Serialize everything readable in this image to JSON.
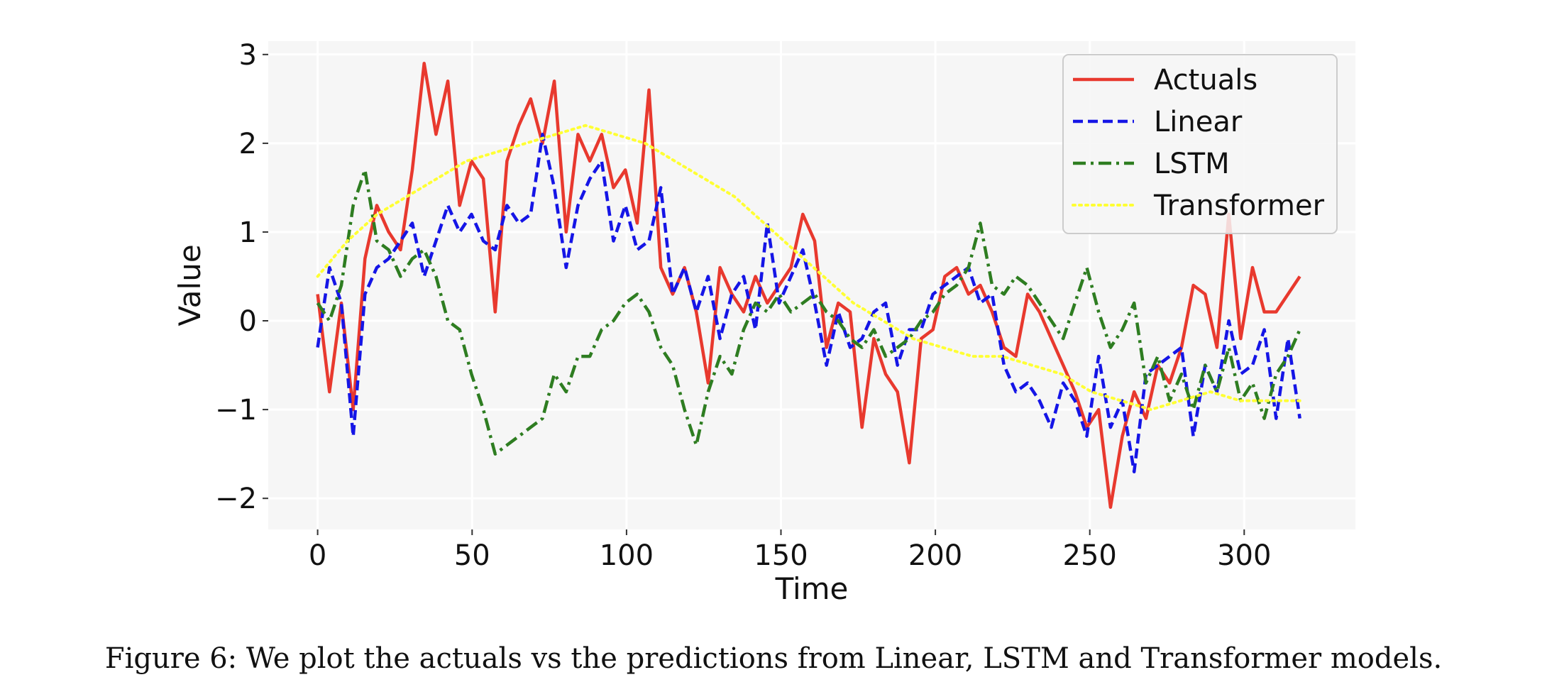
{
  "caption": "Figure 6: We plot the actuals vs the predictions from Linear, LSTM and Transformer models.",
  "chart_data": {
    "type": "line",
    "xlabel": "Time",
    "ylabel": "Value",
    "xlim": [
      -16,
      336
    ],
    "ylim": [
      -2.35,
      3.15
    ],
    "xticks": [
      0,
      50,
      100,
      150,
      200,
      250,
      300
    ],
    "yticks": [
      -2,
      -1,
      0,
      1,
      2,
      3
    ],
    "ytick_labels": [
      "−2",
      "−1",
      "0",
      "1",
      "2",
      "3"
    ],
    "grid": true,
    "legend_position": "top-right",
    "x_step": 10,
    "series": [
      {
        "name": "Actuals",
        "color": "#e8392e",
        "style": "solid",
        "values": [
          0.3,
          -0.8,
          0.2,
          -1.0,
          0.7,
          1.3,
          1.0,
          0.8,
          1.7,
          2.9,
          2.1,
          2.7,
          1.3,
          1.8,
          1.6,
          0.1,
          1.8,
          2.2,
          2.5,
          2.0,
          2.7,
          1.0,
          2.1,
          1.8,
          2.1,
          1.5,
          1.7,
          1.1,
          2.6,
          0.6,
          0.3,
          0.6,
          0.1,
          -0.7,
          0.6,
          0.3,
          0.1,
          0.5,
          0.2,
          0.4,
          0.6,
          1.2,
          0.9,
          -0.3,
          0.2,
          0.1,
          -1.2,
          -0.2,
          -0.6,
          -0.8,
          -1.6,
          -0.2,
          -0.1,
          0.5,
          0.6,
          0.3,
          0.4,
          0.1,
          -0.3,
          -0.4,
          0.3,
          0.1,
          -0.2,
          -0.5,
          -0.8,
          -1.2,
          -1.0,
          -2.1,
          -1.3,
          -0.8,
          -1.1,
          -0.5,
          -0.7,
          -0.3,
          0.4,
          0.3,
          -0.3,
          1.2,
          -0.2,
          0.6,
          0.1,
          0.1,
          0.3,
          0.5
        ]
      },
      {
        "name": "Linear",
        "color": "#1515e6",
        "style": "dashed",
        "values": [
          -0.3,
          0.6,
          0.2,
          -1.3,
          0.3,
          0.6,
          0.7,
          0.9,
          1.1,
          0.5,
          0.9,
          1.3,
          1.0,
          1.2,
          0.9,
          0.8,
          1.3,
          1.1,
          1.2,
          2.1,
          1.5,
          0.6,
          1.3,
          1.6,
          1.8,
          0.9,
          1.3,
          0.8,
          0.9,
          1.5,
          0.3,
          0.6,
          0.1,
          0.5,
          -0.2,
          0.3,
          0.5,
          -0.1,
          1.1,
          0.2,
          0.5,
          0.8,
          0.2,
          -0.5,
          0.1,
          -0.3,
          -0.2,
          0.1,
          0.2,
          -0.5,
          -0.1,
          -0.1,
          0.3,
          0.4,
          0.5,
          0.6,
          0.2,
          0.3,
          -0.5,
          -0.8,
          -0.7,
          -0.9,
          -1.2,
          -0.7,
          -0.9,
          -1.3,
          -0.4,
          -1.2,
          -0.9,
          -1.7,
          -0.6,
          -0.5,
          -0.4,
          -0.3,
          -1.3,
          -0.5,
          -0.8,
          0.0,
          -0.6,
          -0.5,
          -0.1,
          -1.1,
          -0.2,
          -1.1
        ]
      },
      {
        "name": "LSTM",
        "color": "#2e7d21",
        "style": "dashdot",
        "values": [
          0.2,
          0.0,
          0.4,
          1.3,
          1.7,
          0.9,
          0.8,
          0.5,
          0.7,
          0.8,
          0.5,
          0.0,
          -0.1,
          -0.6,
          -1.0,
          -1.5,
          -1.4,
          -1.3,
          -1.2,
          -1.1,
          -0.6,
          -0.8,
          -0.4,
          -0.4,
          -0.1,
          0.0,
          0.2,
          0.3,
          0.1,
          -0.3,
          -0.5,
          -1.0,
          -1.4,
          -0.8,
          -0.4,
          -0.6,
          -0.1,
          0.2,
          0.1,
          0.3,
          0.1,
          0.2,
          0.3,
          0.1,
          0.0,
          -0.2,
          -0.3,
          -0.1,
          -0.4,
          -0.3,
          -0.2,
          0.0,
          0.1,
          0.3,
          0.4,
          0.6,
          1.1,
          0.4,
          0.3,
          0.5,
          0.4,
          0.2,
          0.0,
          -0.2,
          0.2,
          0.6,
          0.1,
          -0.3,
          -0.1,
          0.2,
          -0.7,
          -0.4,
          -0.9,
          -0.6,
          -1.0,
          -0.5,
          -0.8,
          -0.3,
          -0.9,
          -0.7,
          -1.1,
          -0.6,
          -0.4,
          -0.1
        ]
      },
      {
        "name": "Transformer",
        "color": "#ffff33",
        "style": "dotted",
        "values": [
          0.5,
          0.9,
          1.2,
          1.4,
          1.6,
          1.8,
          1.9,
          2.0,
          2.1,
          2.2,
          2.1,
          2.0,
          1.8,
          1.6,
          1.4,
          1.1,
          0.8,
          0.5,
          0.2,
          0.0,
          -0.2,
          -0.3,
          -0.4,
          -0.4,
          -0.5,
          -0.6,
          -0.8,
          -0.9,
          -1.0,
          -0.9,
          -0.8,
          -0.9,
          -0.9,
          -0.9
        ]
      }
    ]
  }
}
